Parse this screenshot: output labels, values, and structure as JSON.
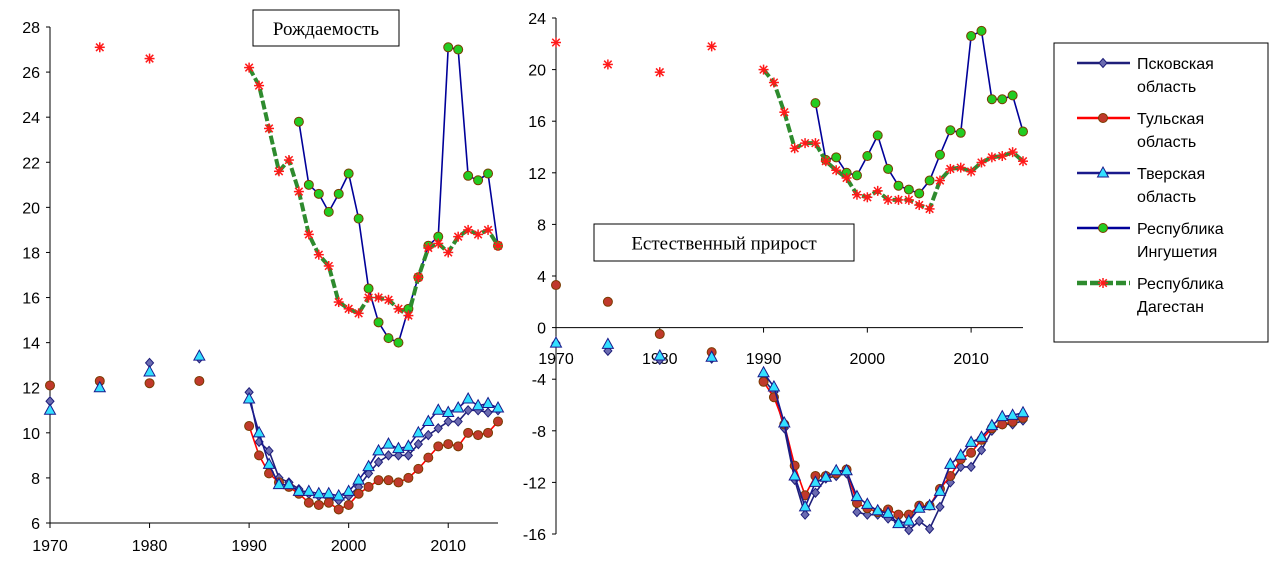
{
  "chart_data": [
    {
      "type": "line",
      "title": "Рождаемость",
      "xlim": [
        1970,
        2015
      ],
      "ylim": [
        6,
        28
      ],
      "xticks": [
        1970,
        1980,
        1990,
        2000,
        2010
      ],
      "yticks": [
        6,
        8,
        10,
        12,
        14,
        16,
        18,
        20,
        22,
        24,
        26,
        28
      ],
      "series": [
        {
          "name": "Псковская область",
          "color": "#1f1f7a",
          "marker": "diamond",
          "markerColor": "#6b6bb0",
          "x": [
            1970,
            1975,
            1980,
            1985,
            1990,
            1991,
            1992,
            1993,
            1994,
            1995,
            1996,
            1997,
            1998,
            1999,
            2000,
            2001,
            2002,
            2003,
            2004,
            2005,
            2006,
            2007,
            2008,
            2009,
            2010,
            2011,
            2012,
            2013,
            2014,
            2015
          ],
          "y": [
            11.4,
            12.2,
            13.1,
            13.3,
            11.8,
            9.6,
            9.2,
            8.0,
            7.8,
            7.5,
            7.3,
            7.2,
            7.1,
            7.0,
            7.2,
            7.6,
            8.2,
            8.7,
            9.0,
            9.0,
            9.0,
            9.5,
            9.9,
            10.2,
            10.5,
            10.5,
            11.0,
            11.0,
            10.9,
            11.0
          ]
        },
        {
          "name": "Тульская область",
          "color": "#ff0000",
          "marker": "circle",
          "markerColor": "#c0392b",
          "x": [
            1970,
            1975,
            1980,
            1985,
            1990,
            1991,
            1992,
            1993,
            1994,
            1995,
            1996,
            1997,
            1998,
            1999,
            2000,
            2001,
            2002,
            2003,
            2004,
            2005,
            2006,
            2007,
            2008,
            2009,
            2010,
            2011,
            2012,
            2013,
            2014,
            2015
          ],
          "y": [
            12.1,
            12.3,
            12.2,
            12.3,
            10.3,
            9.0,
            8.2,
            7.8,
            7.6,
            7.3,
            6.9,
            6.8,
            6.9,
            6.6,
            6.8,
            7.3,
            7.6,
            7.9,
            7.9,
            7.8,
            8.0,
            8.4,
            8.9,
            9.4,
            9.5,
            9.4,
            10.0,
            9.9,
            10.0,
            10.5
          ]
        },
        {
          "name": "Тверская область",
          "color": "#1a1a8c",
          "marker": "triangle",
          "markerColor": "#33e0ff",
          "x": [
            1970,
            1975,
            1980,
            1985,
            1990,
            1991,
            1992,
            1993,
            1994,
            1995,
            1996,
            1997,
            1998,
            1999,
            2000,
            2001,
            2002,
            2003,
            2004,
            2005,
            2006,
            2007,
            2008,
            2009,
            2010,
            2011,
            2012,
            2013,
            2014,
            2015
          ],
          "y": [
            11.0,
            12.0,
            12.7,
            13.4,
            11.5,
            10.0,
            8.6,
            7.7,
            7.7,
            7.4,
            7.4,
            7.3,
            7.3,
            7.2,
            7.4,
            7.9,
            8.5,
            9.2,
            9.5,
            9.3,
            9.4,
            10.0,
            10.5,
            11.0,
            10.9,
            11.1,
            11.5,
            11.2,
            11.3,
            11.1
          ]
        },
        {
          "name": "Республика Ингушетия",
          "color": "#000099",
          "marker": "circle",
          "markerColor": "#22cc22",
          "x": [
            1995,
            1996,
            1997,
            1998,
            1999,
            2000,
            2001,
            2002,
            2003,
            2004,
            2005,
            2006,
            2007,
            2008,
            2009,
            2010,
            2011,
            2012,
            2013,
            2014,
            2015
          ],
          "y": [
            23.8,
            21.0,
            20.6,
            19.8,
            20.6,
            21.5,
            19.5,
            16.4,
            14.9,
            14.2,
            14.0,
            15.5,
            16.9,
            18.3,
            18.7,
            27.1,
            27.0,
            21.4,
            21.2,
            21.5,
            18.3
          ]
        },
        {
          "name": "Республика Дагестан",
          "color": "#2e8b2e",
          "marker": "x",
          "markerColor": "#ff1a1a",
          "x": [
            1975,
            1980,
            1990,
            1991,
            1992,
            1993,
            1994,
            1995,
            1996,
            1997,
            1998,
            1999,
            2000,
            2001,
            2002,
            2003,
            2004,
            2005,
            2006,
            2007,
            2008,
            2009,
            2010,
            2011,
            2012,
            2013,
            2014,
            2015
          ],
          "y": [
            27.1,
            26.6,
            26.2,
            25.4,
            23.5,
            21.6,
            22.1,
            20.7,
            18.8,
            17.9,
            17.4,
            15.8,
            15.5,
            15.3,
            16.0,
            16.0,
            15.9,
            15.5,
            15.2,
            16.9,
            18.2,
            18.4,
            18.0,
            18.7,
            19.0,
            18.8,
            19.0,
            18.3
          ]
        }
      ]
    },
    {
      "type": "line",
      "title": "Естественный прирост",
      "xlim": [
        1970,
        2015
      ],
      "ylim": [
        -16,
        24
      ],
      "xticks": [
        1970,
        1980,
        1990,
        2000,
        2010
      ],
      "yticks": [
        -16,
        -12,
        -8,
        -4,
        0,
        4,
        8,
        12,
        16,
        20,
        24
      ],
      "series": [
        {
          "name": "Псковская область",
          "color": "#1f1f7a",
          "marker": "diamond",
          "markerColor": "#6b6bb0",
          "x": [
            1970,
            1975,
            1980,
            1985,
            1990,
            1991,
            1992,
            1993,
            1994,
            1995,
            1996,
            1997,
            1998,
            1999,
            2000,
            2001,
            2002,
            2003,
            2004,
            2005,
            2006,
            2007,
            2008,
            2009,
            2010,
            2011,
            2012,
            2013,
            2014,
            2015
          ],
          "y": [
            -1.2,
            -1.8,
            -2.5,
            -2.4,
            -4.0,
            -5.0,
            -7.8,
            -11.8,
            -14.5,
            -12.8,
            -11.7,
            -11.5,
            -11.3,
            -14.3,
            -14.5,
            -14.5,
            -14.8,
            -15.1,
            -15.7,
            -15.0,
            -15.6,
            -13.9,
            -12.0,
            -10.8,
            -10.8,
            -9.5,
            -8.0,
            -7.5,
            -7.5,
            -7.2
          ]
        },
        {
          "name": "Тульская область",
          "color": "#ff0000",
          "marker": "circle",
          "markerColor": "#c0392b",
          "x": [
            1970,
            1975,
            1980,
            1985,
            1990,
            1991,
            1992,
            1993,
            1994,
            1995,
            1996,
            1997,
            1998,
            1999,
            2000,
            2001,
            2002,
            2003,
            2004,
            2005,
            2006,
            2007,
            2008,
            2009,
            2010,
            2011,
            2012,
            2013,
            2014,
            2015
          ],
          "y": [
            3.3,
            2.0,
            -0.5,
            -1.9,
            -4.2,
            -5.4,
            -7.5,
            -10.7,
            -13.0,
            -11.5,
            -11.5,
            -11.3,
            -11.0,
            -13.6,
            -14.0,
            -14.3,
            -14.1,
            -14.5,
            -14.5,
            -13.8,
            -13.8,
            -12.5,
            -11.5,
            -10.2,
            -9.7,
            -8.7,
            -7.8,
            -7.5,
            -7.3,
            -7.0
          ]
        },
        {
          "name": "Тверская область",
          "color": "#1a1a8c",
          "marker": "triangle",
          "markerColor": "#33e0ff",
          "x": [
            1970,
            1975,
            1980,
            1985,
            1990,
            1991,
            1992,
            1993,
            1994,
            1995,
            1996,
            1997,
            1998,
            1999,
            2000,
            2001,
            2002,
            2003,
            2004,
            2005,
            2006,
            2007,
            2008,
            2009,
            2010,
            2011,
            2012,
            2013,
            2014,
            2015
          ],
          "y": [
            -1.2,
            -1.3,
            -2.2,
            -2.3,
            -3.5,
            -4.6,
            -7.4,
            -11.5,
            -13.9,
            -12.0,
            -11.6,
            -11.1,
            -11.1,
            -13.1,
            -13.7,
            -14.2,
            -14.4,
            -15.2,
            -15.0,
            -14.0,
            -13.8,
            -12.7,
            -10.6,
            -9.9,
            -8.9,
            -8.5,
            -7.6,
            -6.9,
            -6.8,
            -6.6
          ]
        },
        {
          "name": "Республика Ингушетия",
          "color": "#000099",
          "marker": "circle",
          "markerColor": "#22cc22",
          "x": [
            1995,
            1996,
            1997,
            1998,
            1999,
            2000,
            2001,
            2002,
            2003,
            2004,
            2005,
            2006,
            2007,
            2008,
            2009,
            2010,
            2011,
            2012,
            2013,
            2014,
            2015
          ],
          "y": [
            17.4,
            13.0,
            13.2,
            12.0,
            11.8,
            13.3,
            14.9,
            12.3,
            11.0,
            10.7,
            10.4,
            11.4,
            13.4,
            15.3,
            15.1,
            22.6,
            23.0,
            17.7,
            17.7,
            18.0,
            15.2
          ]
        },
        {
          "name": "Республика Дагестан",
          "color": "#2e8b2e",
          "marker": "x",
          "markerColor": "#ff1a1a",
          "x": [
            1970,
            1975,
            1980,
            1985,
            1990,
            1991,
            1992,
            1993,
            1994,
            1995,
            1996,
            1997,
            1998,
            1999,
            2000,
            2001,
            2002,
            2003,
            2004,
            2005,
            2006,
            2007,
            2008,
            2009,
            2010,
            2011,
            2012,
            2013,
            2014,
            2015
          ],
          "y": [
            22.1,
            20.4,
            19.8,
            21.8,
            20.0,
            19.0,
            16.7,
            13.9,
            14.3,
            14.3,
            12.9,
            12.2,
            11.6,
            10.3,
            10.1,
            10.6,
            9.9,
            9.9,
            9.9,
            9.5,
            9.2,
            11.4,
            12.3,
            12.4,
            12.1,
            12.8,
            13.2,
            13.3,
            13.6,
            12.9
          ]
        }
      ]
    }
  ],
  "legend": [
    {
      "label": "Псковская область",
      "color": "#1f1f7a",
      "marker": "diamond",
      "markerColor": "#6b6bb0",
      "thick": false
    },
    {
      "label": "Тульская область",
      "color": "#ff0000",
      "marker": "circle",
      "markerColor": "#c0392b",
      "thick": false
    },
    {
      "label": "Тверская область",
      "color": "#1a1a8c",
      "marker": "triangle",
      "markerColor": "#33e0ff",
      "thick": false
    },
    {
      "label": "Республика Ингушетия",
      "color": "#000099",
      "marker": "circle",
      "markerColor": "#22cc22",
      "thick": false
    },
    {
      "label": "Республика Дагестан",
      "color": "#2e8b2e",
      "marker": "x",
      "markerColor": "#ff1a1a",
      "thick": true
    }
  ]
}
